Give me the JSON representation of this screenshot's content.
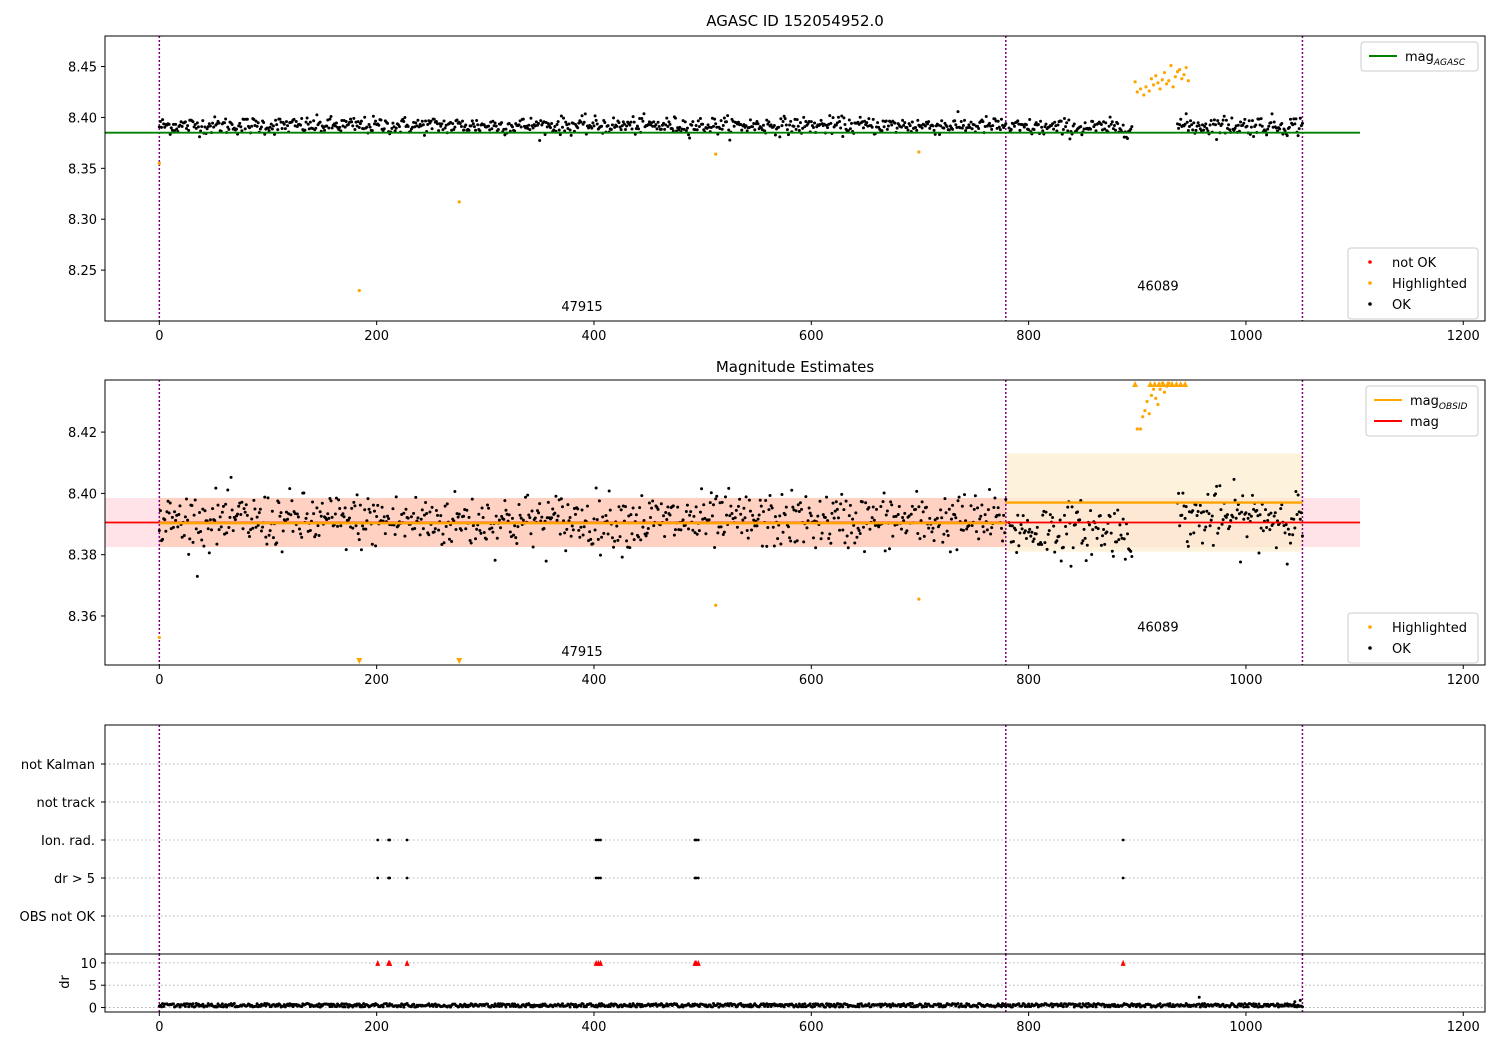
{
  "colors": {
    "ok": "#000000",
    "highlighted": "#ffa500",
    "not_ok": "#ff0000",
    "agasc_line": "#008000",
    "obsid_line": "#ffa500",
    "mag_line": "#ff0000",
    "vline": "#800080",
    "mag_band": "#ffc0cb",
    "obsid_band": "#fcebc8"
  },
  "chart_data": [
    {
      "id": "agasc",
      "type": "scatter",
      "title": "AGASC ID 152054952.0",
      "xlim": [
        -50,
        1220
      ],
      "ylim": [
        8.2,
        8.48
      ],
      "xticks": [
        0,
        200,
        400,
        600,
        800,
        1000,
        1200
      ],
      "yticks": [
        8.25,
        8.3,
        8.35,
        8.4,
        8.45
      ],
      "ytick_labels": [
        "8.25",
        "8.30",
        "8.35",
        "8.40",
        "8.45"
      ],
      "vlines": [
        0,
        779,
        1052
      ],
      "hline": {
        "y": 8.385,
        "x0": -50,
        "x1": 1105
      },
      "obsid_labels": [
        {
          "text": "47915",
          "x": 389,
          "y": 8.21
        },
        {
          "text": "46089",
          "x": 919,
          "y": 8.23
        }
      ],
      "ok_segments": [
        {
          "x0": 0,
          "x1": 779,
          "center": 8.392,
          "spread": 0.007
        },
        {
          "x0": 782,
          "x1": 895,
          "center": 8.39,
          "spread": 0.007
        },
        {
          "x0": 937,
          "x1": 1052,
          "center": 8.392,
          "spread": 0.008
        }
      ],
      "highlighted_points": [
        [
          0,
          8.355
        ],
        [
          184,
          8.23
        ],
        [
          276,
          8.317
        ],
        [
          512,
          8.364
        ],
        [
          699,
          8.366
        ],
        [
          898,
          8.435
        ],
        [
          900,
          8.425
        ],
        [
          903,
          8.428
        ],
        [
          906,
          8.422
        ],
        [
          908,
          8.43
        ],
        [
          911,
          8.426
        ],
        [
          913,
          8.438
        ],
        [
          915,
          8.432
        ],
        [
          917,
          8.441
        ],
        [
          919,
          8.434
        ],
        [
          921,
          8.428
        ],
        [
          923,
          8.437
        ],
        [
          925,
          8.444
        ],
        [
          927,
          8.433
        ],
        [
          929,
          8.436
        ],
        [
          931,
          8.451
        ],
        [
          933,
          8.43
        ],
        [
          935,
          8.44
        ],
        [
          937,
          8.445
        ],
        [
          939,
          8.447
        ],
        [
          941,
          8.438
        ],
        [
          943,
          8.442
        ],
        [
          945,
          8.449
        ],
        [
          947,
          8.436
        ]
      ],
      "legends": [
        {
          "position": "top-right",
          "entries": [
            {
              "label": "mag",
              "subscript": "AGASC",
              "kind": "line",
              "color_key": "agasc_line"
            }
          ]
        },
        {
          "position": "lower-right",
          "entries": [
            {
              "label": "not OK",
              "kind": "dot",
              "color_key": "not_ok"
            },
            {
              "label": "Highlighted",
              "kind": "dot",
              "color_key": "highlighted"
            },
            {
              "label": "OK",
              "kind": "dot",
              "color_key": "ok"
            }
          ]
        }
      ]
    },
    {
      "id": "estimates",
      "type": "scatter",
      "title": "Magnitude Estimates",
      "xlim": [
        -50,
        1220
      ],
      "ylim": [
        8.344,
        8.437
      ],
      "xticks": [
        0,
        200,
        400,
        600,
        800,
        1000,
        1200
      ],
      "yticks": [
        8.36,
        8.38,
        8.4,
        8.42
      ],
      "ytick_labels": [
        "8.36",
        "8.38",
        "8.40",
        "8.42"
      ],
      "vlines": [
        0,
        779,
        1052
      ],
      "mag_line": {
        "y": 8.3905,
        "x0": -50,
        "x1": 1105,
        "band": [
          8.3825,
          8.3985
        ]
      },
      "obsid_lines": [
        {
          "y": 8.3903,
          "x0": 0,
          "x1": 779,
          "band": [
            8.3825,
            8.3985
          ]
        },
        {
          "y": 8.397,
          "x0": 779,
          "x1": 1052,
          "band": [
            8.381,
            8.413
          ]
        }
      ],
      "obsid_labels": [
        {
          "text": "47915",
          "x": 389,
          "y": 8.347
        },
        {
          "text": "46089",
          "x": 919,
          "y": 8.355
        }
      ],
      "ok_segments": [
        {
          "x0": 0,
          "x1": 779,
          "center": 8.391,
          "spread": 0.0075
        },
        {
          "x0": 782,
          "x1": 895,
          "center": 8.388,
          "spread": 0.0075
        },
        {
          "x0": 937,
          "x1": 1052,
          "center": 8.392,
          "spread": 0.008
        }
      ],
      "highlighted_points": [
        [
          0,
          8.353
        ],
        [
          512,
          8.3635
        ],
        [
          699,
          8.3655
        ],
        [
          900,
          8.421
        ],
        [
          903,
          8.421
        ],
        [
          905,
          8.425
        ],
        [
          907,
          8.427
        ],
        [
          909,
          8.43
        ],
        [
          911,
          8.426
        ],
        [
          913,
          8.432
        ],
        [
          915,
          8.434
        ],
        [
          917,
          8.431
        ],
        [
          919,
          8.429
        ],
        [
          921,
          8.434
        ],
        [
          923,
          8.436
        ],
        [
          925,
          8.433
        ],
        [
          927,
          8.435
        ],
        [
          929,
          8.436
        ]
      ],
      "clipped_high": [
        898,
        912,
        916,
        920,
        924,
        928,
        932,
        936,
        940,
        944
      ],
      "clipped_low": [
        184,
        276
      ],
      "legends": [
        {
          "position": "top-right",
          "entries": [
            {
              "label": "mag",
              "subscript": "OBSID",
              "kind": "line",
              "color_key": "obsid_line"
            },
            {
              "label": "mag",
              "kind": "line",
              "color_key": "mag_line"
            }
          ]
        },
        {
          "position": "lower-right",
          "entries": [
            {
              "label": "Highlighted",
              "kind": "dot",
              "color_key": "highlighted"
            },
            {
              "label": "OK",
              "kind": "dot",
              "color_key": "ok"
            }
          ]
        }
      ]
    },
    {
      "id": "flags",
      "type": "scatter",
      "xlim": [
        -50,
        1220
      ],
      "categories": [
        "OBS not OK",
        "dr > 5",
        "Ion. rad.",
        "not track",
        "not Kalman"
      ],
      "vlines": [
        0,
        779,
        1052
      ],
      "ion_rad_x": [
        201,
        211,
        212,
        228,
        402,
        404,
        406,
        493,
        494,
        496,
        887
      ],
      "dr_gt5_x": [
        201,
        211,
        212,
        228,
        402,
        404,
        406,
        493,
        494,
        496,
        887
      ]
    },
    {
      "id": "dr",
      "type": "scatter",
      "ylabel": "dr",
      "xlim": [
        -50,
        1220
      ],
      "ylim": [
        -1,
        12
      ],
      "xticks": [
        0,
        200,
        400,
        600,
        800,
        1000,
        1200
      ],
      "yticks": [
        0,
        5,
        10
      ],
      "ytick_labels": [
        "0",
        "5",
        "10"
      ],
      "vlines": [
        0,
        779,
        1052
      ],
      "baseline": {
        "x0": 0,
        "x1": 1052,
        "center": 0.5,
        "spread": 0.4
      },
      "clipped_x": [
        201,
        211,
        212,
        228,
        402,
        404,
        406,
        493,
        494,
        496,
        887
      ],
      "outliers": [
        [
          957,
          2.3
        ],
        [
          1045,
          1.3
        ],
        [
          1050,
          1.6
        ]
      ]
    }
  ]
}
